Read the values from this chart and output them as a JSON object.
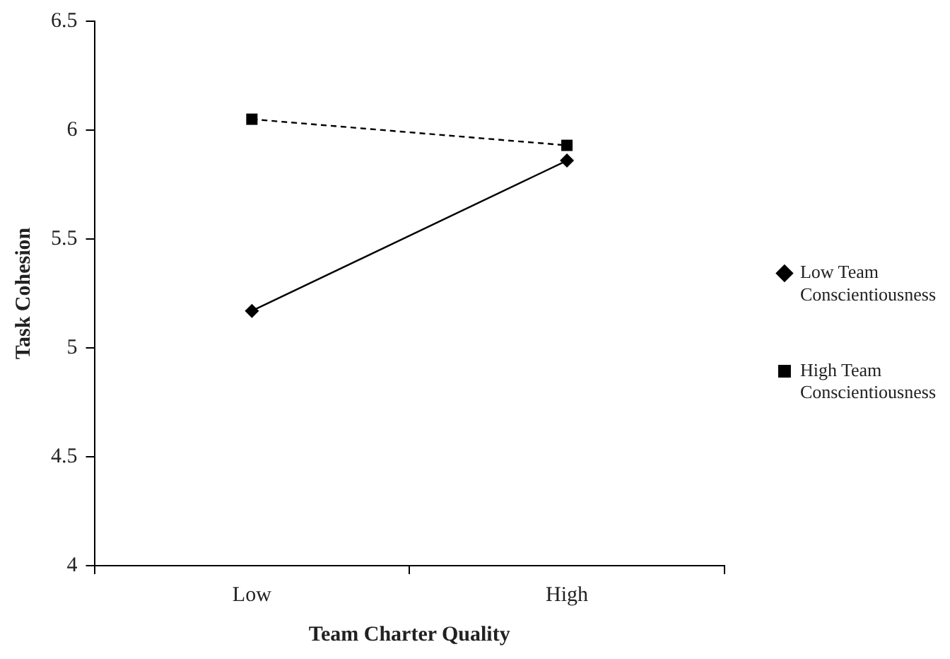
{
  "chart_data": {
    "type": "line",
    "xlabel": "Team Charter Quality",
    "ylabel": "Task Cohesion",
    "categories": [
      "Low",
      "High"
    ],
    "series": [
      {
        "name": "Low Team Conscientiousness",
        "color": "#000000",
        "values": [
          5.17,
          5.86
        ],
        "marker": "diamond",
        "line_style": "solid"
      },
      {
        "name": "High Team Conscientiousness",
        "color": "#000000",
        "values": [
          6.05,
          5.93
        ],
        "marker": "square",
        "line_style": "dashed"
      }
    ],
    "ylim": [
      4,
      6.5
    ],
    "yticks": [
      4,
      4.5,
      5,
      5.5,
      6,
      6.5
    ],
    "grid": false,
    "legend": "right"
  }
}
